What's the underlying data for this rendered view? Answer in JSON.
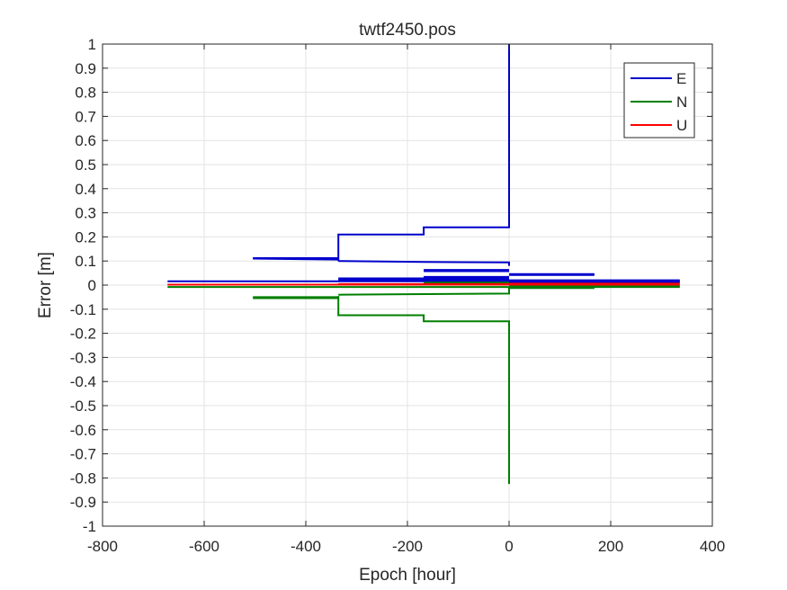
{
  "chart_data": {
    "type": "line",
    "title": "twtf2450.pos",
    "xlabel": "Epoch [hour]",
    "ylabel": "Error [m]",
    "xlim": [
      -800,
      400
    ],
    "ylim": [
      -1,
      1
    ],
    "x_ticks": [
      -800,
      -600,
      -400,
      -200,
      0,
      200,
      400
    ],
    "y_ticks": [
      -1,
      -0.9,
      -0.8,
      -0.7,
      -0.6,
      -0.5,
      -0.4,
      -0.3,
      -0.2,
      -0.1,
      0,
      0.1,
      0.2,
      0.3,
      0.4,
      0.5,
      0.6,
      0.7,
      0.8,
      0.9,
      1
    ],
    "grid": true,
    "legend_position": "top-right",
    "series": [
      {
        "name": "E",
        "color": "#0000cd",
        "segments": [
          [
            [
              -672,
              0.016
            ],
            [
              336,
              0.016
            ]
          ],
          [
            [
              -504,
              0.112
            ],
            [
              -336,
              0.112
            ]
          ],
          [
            [
              -504,
              0.11
            ],
            [
              -336,
              0.106
            ]
          ],
          [
            [
              -336,
              0.1
            ],
            [
              -336,
              0.21
            ],
            [
              -168,
              0.21
            ],
            [
              -168,
              0.24
            ],
            [
              0,
              0.24
            ],
            [
              0,
              1.0
            ]
          ],
          [
            [
              -336,
              0.1
            ],
            [
              -168,
              0.096
            ],
            [
              0,
              0.094
            ],
            [
              0,
              0.08
            ]
          ],
          [
            [
              -168,
              0.063
            ],
            [
              0,
              0.063
            ]
          ],
          [
            [
              -168,
              0.058
            ],
            [
              0,
              0.058
            ]
          ],
          [
            [
              0,
              0.046
            ],
            [
              168,
              0.046
            ]
          ],
          [
            [
              0,
              0.042
            ],
            [
              168,
              0.042
            ]
          ],
          [
            [
              -336,
              0.028
            ],
            [
              0,
              0.028
            ]
          ],
          [
            [
              -336,
              0.024
            ],
            [
              0,
              0.024
            ]
          ],
          [
            [
              -168,
              0.034
            ],
            [
              0,
              0.034
            ]
          ],
          [
            [
              -168,
              0.031
            ],
            [
              0,
              0.031
            ]
          ],
          [
            [
              -336,
              0.02
            ],
            [
              336,
              0.02
            ]
          ],
          [
            [
              0,
              0.012
            ],
            [
              336,
              0.012
            ]
          ]
        ]
      },
      {
        "name": "N",
        "color": "#007f00",
        "segments": [
          [
            [
              -672,
              -0.008
            ],
            [
              336,
              -0.008
            ]
          ],
          [
            [
              -504,
              -0.05
            ],
            [
              -336,
              -0.05
            ]
          ],
          [
            [
              -504,
              -0.054
            ],
            [
              -336,
              -0.054
            ]
          ],
          [
            [
              -336,
              -0.04
            ],
            [
              0,
              -0.035
            ],
            [
              0,
              -0.01
            ]
          ],
          [
            [
              -336,
              -0.045
            ],
            [
              -336,
              -0.125
            ],
            [
              -168,
              -0.125
            ],
            [
              -168,
              -0.15
            ],
            [
              0,
              -0.15
            ],
            [
              0,
              -0.825
            ]
          ],
          [
            [
              0,
              -0.012
            ],
            [
              168,
              -0.012
            ]
          ],
          [
            [
              -168,
              0.01
            ],
            [
              0,
              0.01
            ]
          ],
          [
            [
              0,
              -0.004
            ],
            [
              336,
              -0.004
            ]
          ]
        ]
      },
      {
        "name": "U",
        "color": "#ff0000",
        "segments": [
          [
            [
              -672,
              0.002
            ],
            [
              336,
              0.002
            ]
          ],
          [
            [
              -336,
              0.004
            ],
            [
              0,
              0.004
            ]
          ],
          [
            [
              0,
              0.006
            ],
            [
              336,
              0.006
            ]
          ]
        ]
      }
    ]
  }
}
